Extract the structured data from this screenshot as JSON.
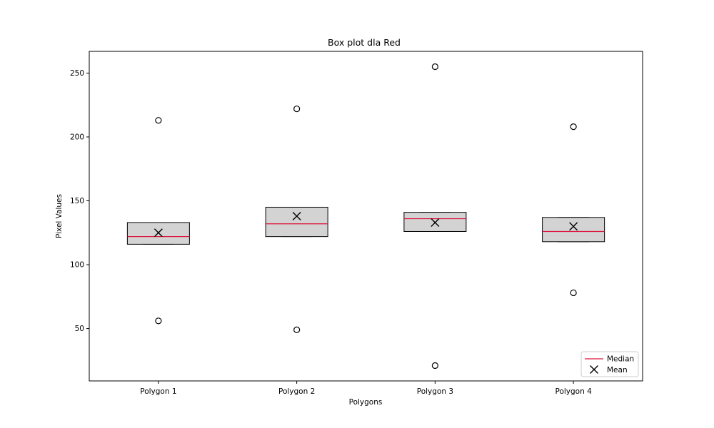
{
  "chart_data": {
    "type": "box",
    "title": "Box plot dla Red",
    "xlabel": "Polygons",
    "ylabel": "Pixel Values",
    "ylim": [
      9,
      267
    ],
    "yticks": [
      50,
      100,
      150,
      200,
      250
    ],
    "categories": [
      "Polygon 1",
      "Polygon 2",
      "Polygon 3",
      "Polygon 4"
    ],
    "boxes": [
      {
        "category": "Polygon 1",
        "q1": 116,
        "median": 122,
        "q3": 133,
        "whisker_low": 116,
        "whisker_high": 133,
        "mean": 125,
        "outliers": [
          213,
          56
        ]
      },
      {
        "category": "Polygon 2",
        "q1": 122,
        "median": 132,
        "q3": 145,
        "whisker_low": 122,
        "whisker_high": 145,
        "mean": 138,
        "outliers": [
          222,
          49
        ]
      },
      {
        "category": "Polygon 3",
        "q1": 126,
        "median": 136,
        "q3": 141,
        "whisker_low": 126,
        "whisker_high": 141,
        "mean": 133,
        "outliers": [
          255,
          21
        ]
      },
      {
        "category": "Polygon 4",
        "q1": 118,
        "median": 126,
        "q3": 137,
        "whisker_low": 118,
        "whisker_high": 137,
        "mean": 130,
        "outliers": [
          208,
          78
        ]
      }
    ],
    "legend": {
      "position": "lower-right",
      "entries": [
        "Median",
        "Mean"
      ]
    },
    "grid": false,
    "colors": {
      "box_fill": "#d3d3d3",
      "median": "#dc143c",
      "mean": "#000000",
      "outline": "#000000"
    }
  }
}
